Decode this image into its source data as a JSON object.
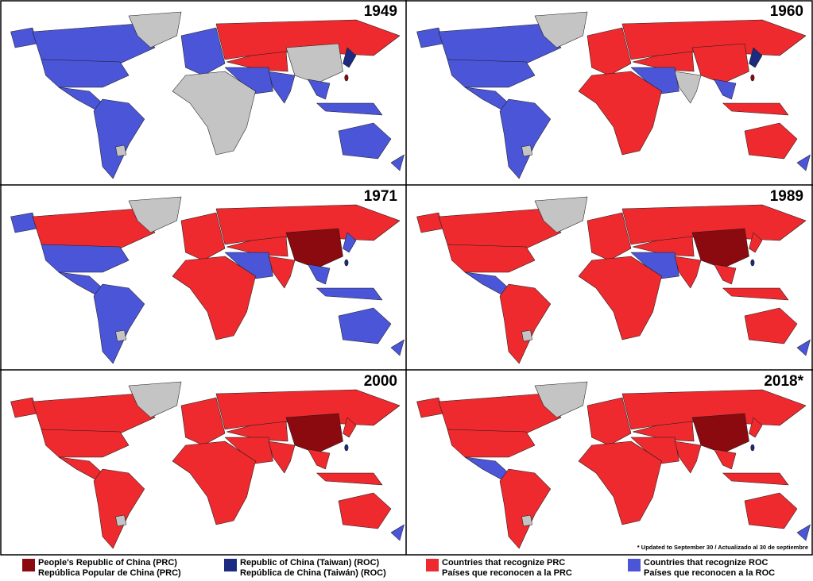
{
  "panels": [
    {
      "year": "1949"
    },
    {
      "year": "1960"
    },
    {
      "year": "1971"
    },
    {
      "year": "1989"
    },
    {
      "year": "2000"
    },
    {
      "year": "2018*"
    }
  ],
  "note": "* Updated to September 30 / Actualizado al 30 de septiembre",
  "legend": [
    {
      "label_en": "People's Republic of China (PRC)",
      "label_es": "República Popular de China (PRC)",
      "color": "#8b0a10"
    },
    {
      "label_en": "Republic of China (Taiwan) (ROC)",
      "label_es": "República de China (Taiwán) (ROC)",
      "color": "#1c2a80"
    },
    {
      "label_en": "Countries that recognize PRC",
      "label_es": "Países que reconocen a la PRC",
      "color": "#ee2a2e"
    },
    {
      "label_en": "Countries that recognize ROC",
      "label_es": "Países que reconocen a la ROC",
      "color": "#4b55d8"
    }
  ]
}
